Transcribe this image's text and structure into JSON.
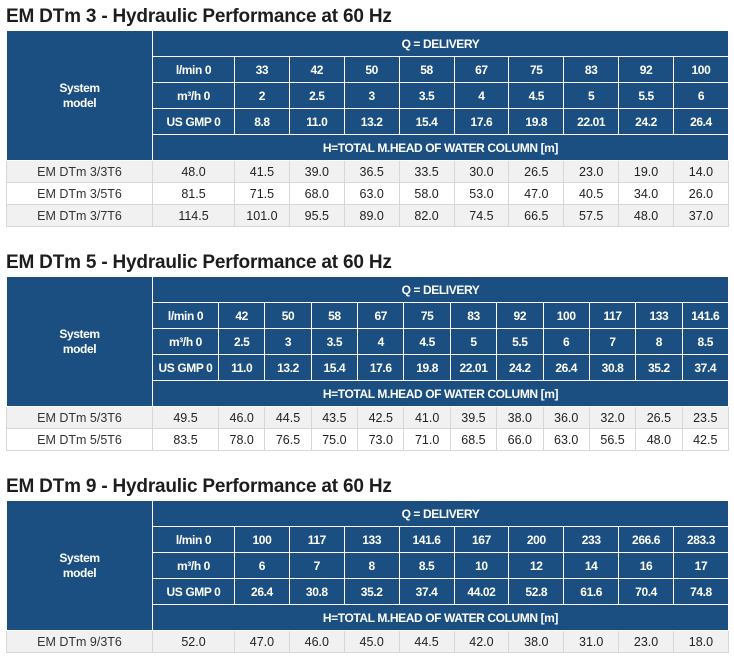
{
  "tables": [
    {
      "title": "EM DTm 3 - Hydraulic Performance at 60 Hz",
      "system_label": "System\nmodel",
      "q_label": "Q = DELIVERY",
      "h_label": "H=TOTAL M.HEAD OF WATER COLUMN [m]",
      "unit_rows": [
        {
          "unit": "l/min 0",
          "values": [
            "33",
            "42",
            "50",
            "58",
            "67",
            "75",
            "83",
            "92",
            "100"
          ]
        },
        {
          "unit": "m³/h 0",
          "values": [
            "2",
            "2.5",
            "3",
            "3.5",
            "4",
            "4.5",
            "5",
            "5.5",
            "6"
          ]
        },
        {
          "unit": "US GMP 0",
          "values": [
            "8.8",
            "11.0",
            "13.2",
            "15.4",
            "17.6",
            "19.8",
            "22.01",
            "24.2",
            "26.4"
          ]
        }
      ],
      "models": [
        {
          "name": "EM DTm 3/3T6",
          "values": [
            "48.0",
            "41.5",
            "39.0",
            "36.5",
            "33.5",
            "30.0",
            "26.5",
            "23.0",
            "19.0",
            "14.0"
          ]
        },
        {
          "name": "EM DTm 3/5T6",
          "values": [
            "81.5",
            "71.5",
            "68.0",
            "63.0",
            "58.0",
            "53.0",
            "47.0",
            "40.5",
            "34.0",
            "26.0"
          ]
        },
        {
          "name": "EM DTm 3/7T6",
          "values": [
            "114.5",
            "101.0",
            "95.5",
            "89.0",
            "82.0",
            "74.5",
            "66.5",
            "57.5",
            "48.0",
            "37.0"
          ]
        }
      ]
    },
    {
      "title": "EM DTm 5 - Hydraulic Performance at 60 Hz",
      "system_label": "System\nmodel",
      "q_label": "Q = DELIVERY",
      "h_label": "H=TOTAL M.HEAD OF WATER COLUMN [m]",
      "unit_rows": [
        {
          "unit": "l/min 0",
          "values": [
            "42",
            "50",
            "58",
            "67",
            "75",
            "83",
            "92",
            "100",
            "117",
            "133",
            "141.6"
          ]
        },
        {
          "unit": "m³/h 0",
          "values": [
            "2.5",
            "3",
            "3.5",
            "4",
            "4.5",
            "5",
            "5.5",
            "6",
            "7",
            "8",
            "8.5"
          ]
        },
        {
          "unit": "US GMP 0",
          "values": [
            "11.0",
            "13.2",
            "15.4",
            "17.6",
            "19.8",
            "22.01",
            "24.2",
            "26.4",
            "30.8",
            "35.2",
            "37.4"
          ]
        }
      ],
      "models": [
        {
          "name": "EM DTm 5/3T6",
          "values": [
            "49.5",
            "46.0",
            "44.5",
            "43.5",
            "42.5",
            "41.0",
            "39.5",
            "38.0",
            "36.0",
            "32.0",
            "26.5",
            "23.5"
          ]
        },
        {
          "name": "EM DTm 5/5T6",
          "values": [
            "83.5",
            "78.0",
            "76.5",
            "75.0",
            "73.0",
            "71.0",
            "68.5",
            "66.0",
            "63.0",
            "56.5",
            "48.0",
            "42.5"
          ]
        }
      ]
    },
    {
      "title": "EM DTm 9 - Hydraulic Performance at 60 Hz",
      "system_label": "System\nmodel",
      "q_label": "Q = DELIVERY",
      "h_label": "H=TOTAL M.HEAD OF WATER COLUMN [m]",
      "unit_rows": [
        {
          "unit": "l/min 0",
          "values": [
            "100",
            "117",
            "133",
            "141.6",
            "167",
            "200",
            "233",
            "266.6",
            "283.3"
          ]
        },
        {
          "unit": "m³/h 0",
          "values": [
            "6",
            "7",
            "8",
            "8.5",
            "10",
            "12",
            "14",
            "16",
            "17"
          ]
        },
        {
          "unit": "US GMP 0",
          "values": [
            "26.4",
            "30.8",
            "35.2",
            "37.4",
            "44.02",
            "52.8",
            "61.6",
            "70.4",
            "74.8"
          ]
        }
      ],
      "models": [
        {
          "name": "EM DTm 9/3T6",
          "values": [
            "52.0",
            "47.0",
            "46.0",
            "45.0",
            "44.5",
            "42.0",
            "38.0",
            "31.0",
            "23.0",
            "18.0"
          ]
        }
      ]
    }
  ]
}
